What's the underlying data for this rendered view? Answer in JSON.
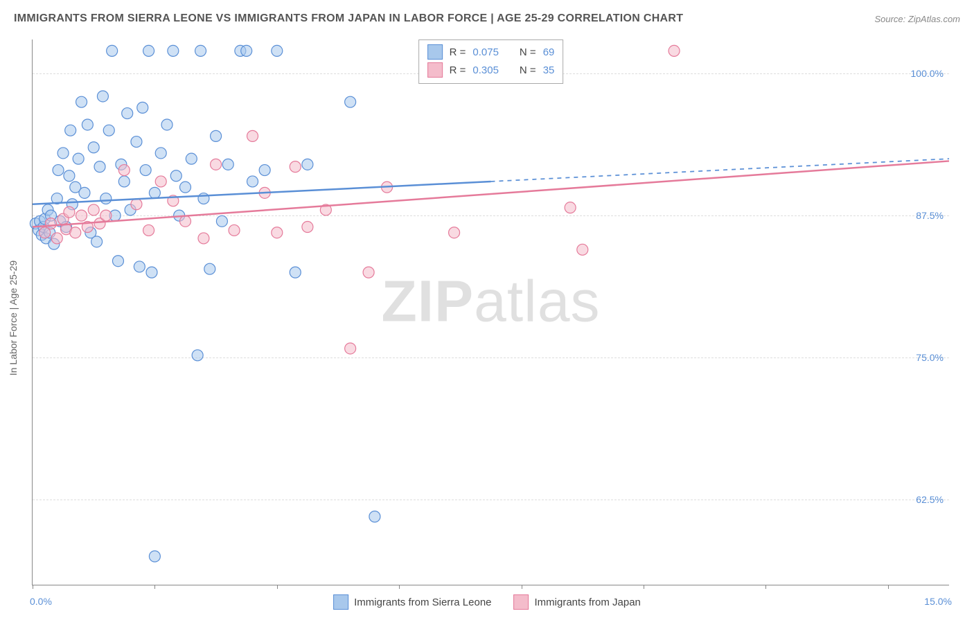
{
  "header": {
    "title": "IMMIGRANTS FROM SIERRA LEONE VS IMMIGRANTS FROM JAPAN IN LABOR FORCE | AGE 25-29 CORRELATION CHART",
    "source_label": "Source: ZipAtlas.com"
  },
  "chart": {
    "type": "scatter",
    "ylabel": "In Labor Force | Age 25-29",
    "xlim": [
      0,
      15
    ],
    "ylim": [
      55,
      103
    ],
    "yticks": [
      62.5,
      75.0,
      87.5,
      100.0
    ],
    "ytick_labels": [
      "62.5%",
      "75.0%",
      "87.5%",
      "100.0%"
    ],
    "xticks": [
      0,
      2,
      4,
      6,
      8,
      10,
      12,
      14
    ],
    "x_range_labels": {
      "min": "0.0%",
      "max": "15.0%"
    },
    "background_color": "#ffffff",
    "grid_color": "#e0e0e0",
    "marker_radius": 8,
    "marker_stroke_width": 1.2,
    "line_width": 2.5,
    "series": [
      {
        "name": "Immigrants from Sierra Leone",
        "fill_color": "#a8c8ec",
        "stroke_color": "#5a8fd6",
        "fill_opacity": 0.55,
        "r": 0.075,
        "n": 69,
        "trend": {
          "x1": 0,
          "y1": 88.5,
          "x2": 15,
          "y2": 92.5,
          "solid_until_x": 7.5
        },
        "points": [
          [
            0.05,
            86.8
          ],
          [
            0.1,
            86.2
          ],
          [
            0.12,
            87.0
          ],
          [
            0.15,
            85.8
          ],
          [
            0.18,
            86.5
          ],
          [
            0.2,
            87.2
          ],
          [
            0.22,
            85.5
          ],
          [
            0.25,
            88.0
          ],
          [
            0.28,
            86.0
          ],
          [
            0.3,
            87.5
          ],
          [
            0.35,
            85.0
          ],
          [
            0.4,
            89.0
          ],
          [
            0.42,
            91.5
          ],
          [
            0.45,
            87.0
          ],
          [
            0.5,
            93.0
          ],
          [
            0.55,
            86.5
          ],
          [
            0.6,
            91.0
          ],
          [
            0.62,
            95.0
          ],
          [
            0.65,
            88.5
          ],
          [
            0.7,
            90.0
          ],
          [
            0.75,
            92.5
          ],
          [
            0.8,
            97.5
          ],
          [
            0.85,
            89.5
          ],
          [
            0.9,
            95.5
          ],
          [
            0.95,
            86.0
          ],
          [
            1.0,
            93.5
          ],
          [
            1.05,
            85.2
          ],
          [
            1.1,
            91.8
          ],
          [
            1.15,
            98.0
          ],
          [
            1.2,
            89.0
          ],
          [
            1.25,
            95.0
          ],
          [
            1.3,
            102.0
          ],
          [
            1.35,
            87.5
          ],
          [
            1.4,
            83.5
          ],
          [
            1.45,
            92.0
          ],
          [
            1.5,
            90.5
          ],
          [
            1.55,
            96.5
          ],
          [
            1.6,
            88.0
          ],
          [
            1.7,
            94.0
          ],
          [
            1.75,
            83.0
          ],
          [
            1.8,
            97.0
          ],
          [
            1.85,
            91.5
          ],
          [
            1.9,
            102.0
          ],
          [
            1.95,
            82.5
          ],
          [
            2.0,
            89.5
          ],
          [
            2.1,
            93.0
          ],
          [
            2.2,
            95.5
          ],
          [
            2.3,
            102.0
          ],
          [
            2.35,
            91.0
          ],
          [
            2.4,
            87.5
          ],
          [
            2.5,
            90.0
          ],
          [
            2.6,
            92.5
          ],
          [
            2.7,
            75.2
          ],
          [
            2.75,
            102.0
          ],
          [
            2.8,
            89.0
          ],
          [
            2.9,
            82.8
          ],
          [
            3.0,
            94.5
          ],
          [
            3.1,
            87.0
          ],
          [
            3.2,
            92.0
          ],
          [
            3.4,
            102.0
          ],
          [
            3.5,
            102.0
          ],
          [
            3.6,
            90.5
          ],
          [
            3.8,
            91.5
          ],
          [
            4.0,
            102.0
          ],
          [
            4.3,
            82.5
          ],
          [
            4.5,
            92.0
          ],
          [
            5.2,
            97.5
          ],
          [
            5.6,
            61.0
          ],
          [
            2.0,
            57.5
          ]
        ]
      },
      {
        "name": "Immigrants from Japan",
        "fill_color": "#f4bccb",
        "stroke_color": "#e57a9a",
        "fill_opacity": 0.55,
        "r": 0.305,
        "n": 35,
        "trend": {
          "x1": 0,
          "y1": 86.5,
          "x2": 15,
          "y2": 92.3,
          "solid_until_x": 15
        },
        "points": [
          [
            0.2,
            86.0
          ],
          [
            0.3,
            86.8
          ],
          [
            0.4,
            85.5
          ],
          [
            0.5,
            87.2
          ],
          [
            0.55,
            86.3
          ],
          [
            0.6,
            87.8
          ],
          [
            0.7,
            86.0
          ],
          [
            0.8,
            87.5
          ],
          [
            0.9,
            86.5
          ],
          [
            1.0,
            88.0
          ],
          [
            1.1,
            86.8
          ],
          [
            1.2,
            87.5
          ],
          [
            1.5,
            91.5
          ],
          [
            1.7,
            88.5
          ],
          [
            1.9,
            86.2
          ],
          [
            2.1,
            90.5
          ],
          [
            2.3,
            88.8
          ],
          [
            2.5,
            87.0
          ],
          [
            2.8,
            85.5
          ],
          [
            3.0,
            92.0
          ],
          [
            3.3,
            86.2
          ],
          [
            3.6,
            94.5
          ],
          [
            3.8,
            89.5
          ],
          [
            4.0,
            86.0
          ],
          [
            4.3,
            91.8
          ],
          [
            4.5,
            86.5
          ],
          [
            4.8,
            88.0
          ],
          [
            5.2,
            75.8
          ],
          [
            5.5,
            82.5
          ],
          [
            5.8,
            90.0
          ],
          [
            6.5,
            102.0
          ],
          [
            6.9,
            86.0
          ],
          [
            8.8,
            88.2
          ],
          [
            9.0,
            84.5
          ],
          [
            10.5,
            102.0
          ]
        ]
      }
    ]
  },
  "legend_top": {
    "r_label": "R =",
    "n_label": "N ="
  },
  "legend_bottom": {
    "series1": "Immigrants from Sierra Leone",
    "series2": "Immigrants from Japan"
  },
  "watermark": {
    "bold": "ZIP",
    "rest": "atlas"
  },
  "colors": {
    "title": "#555555",
    "source": "#888888",
    "axis_label_blue": "#5a8fd6",
    "border": "#888888"
  }
}
